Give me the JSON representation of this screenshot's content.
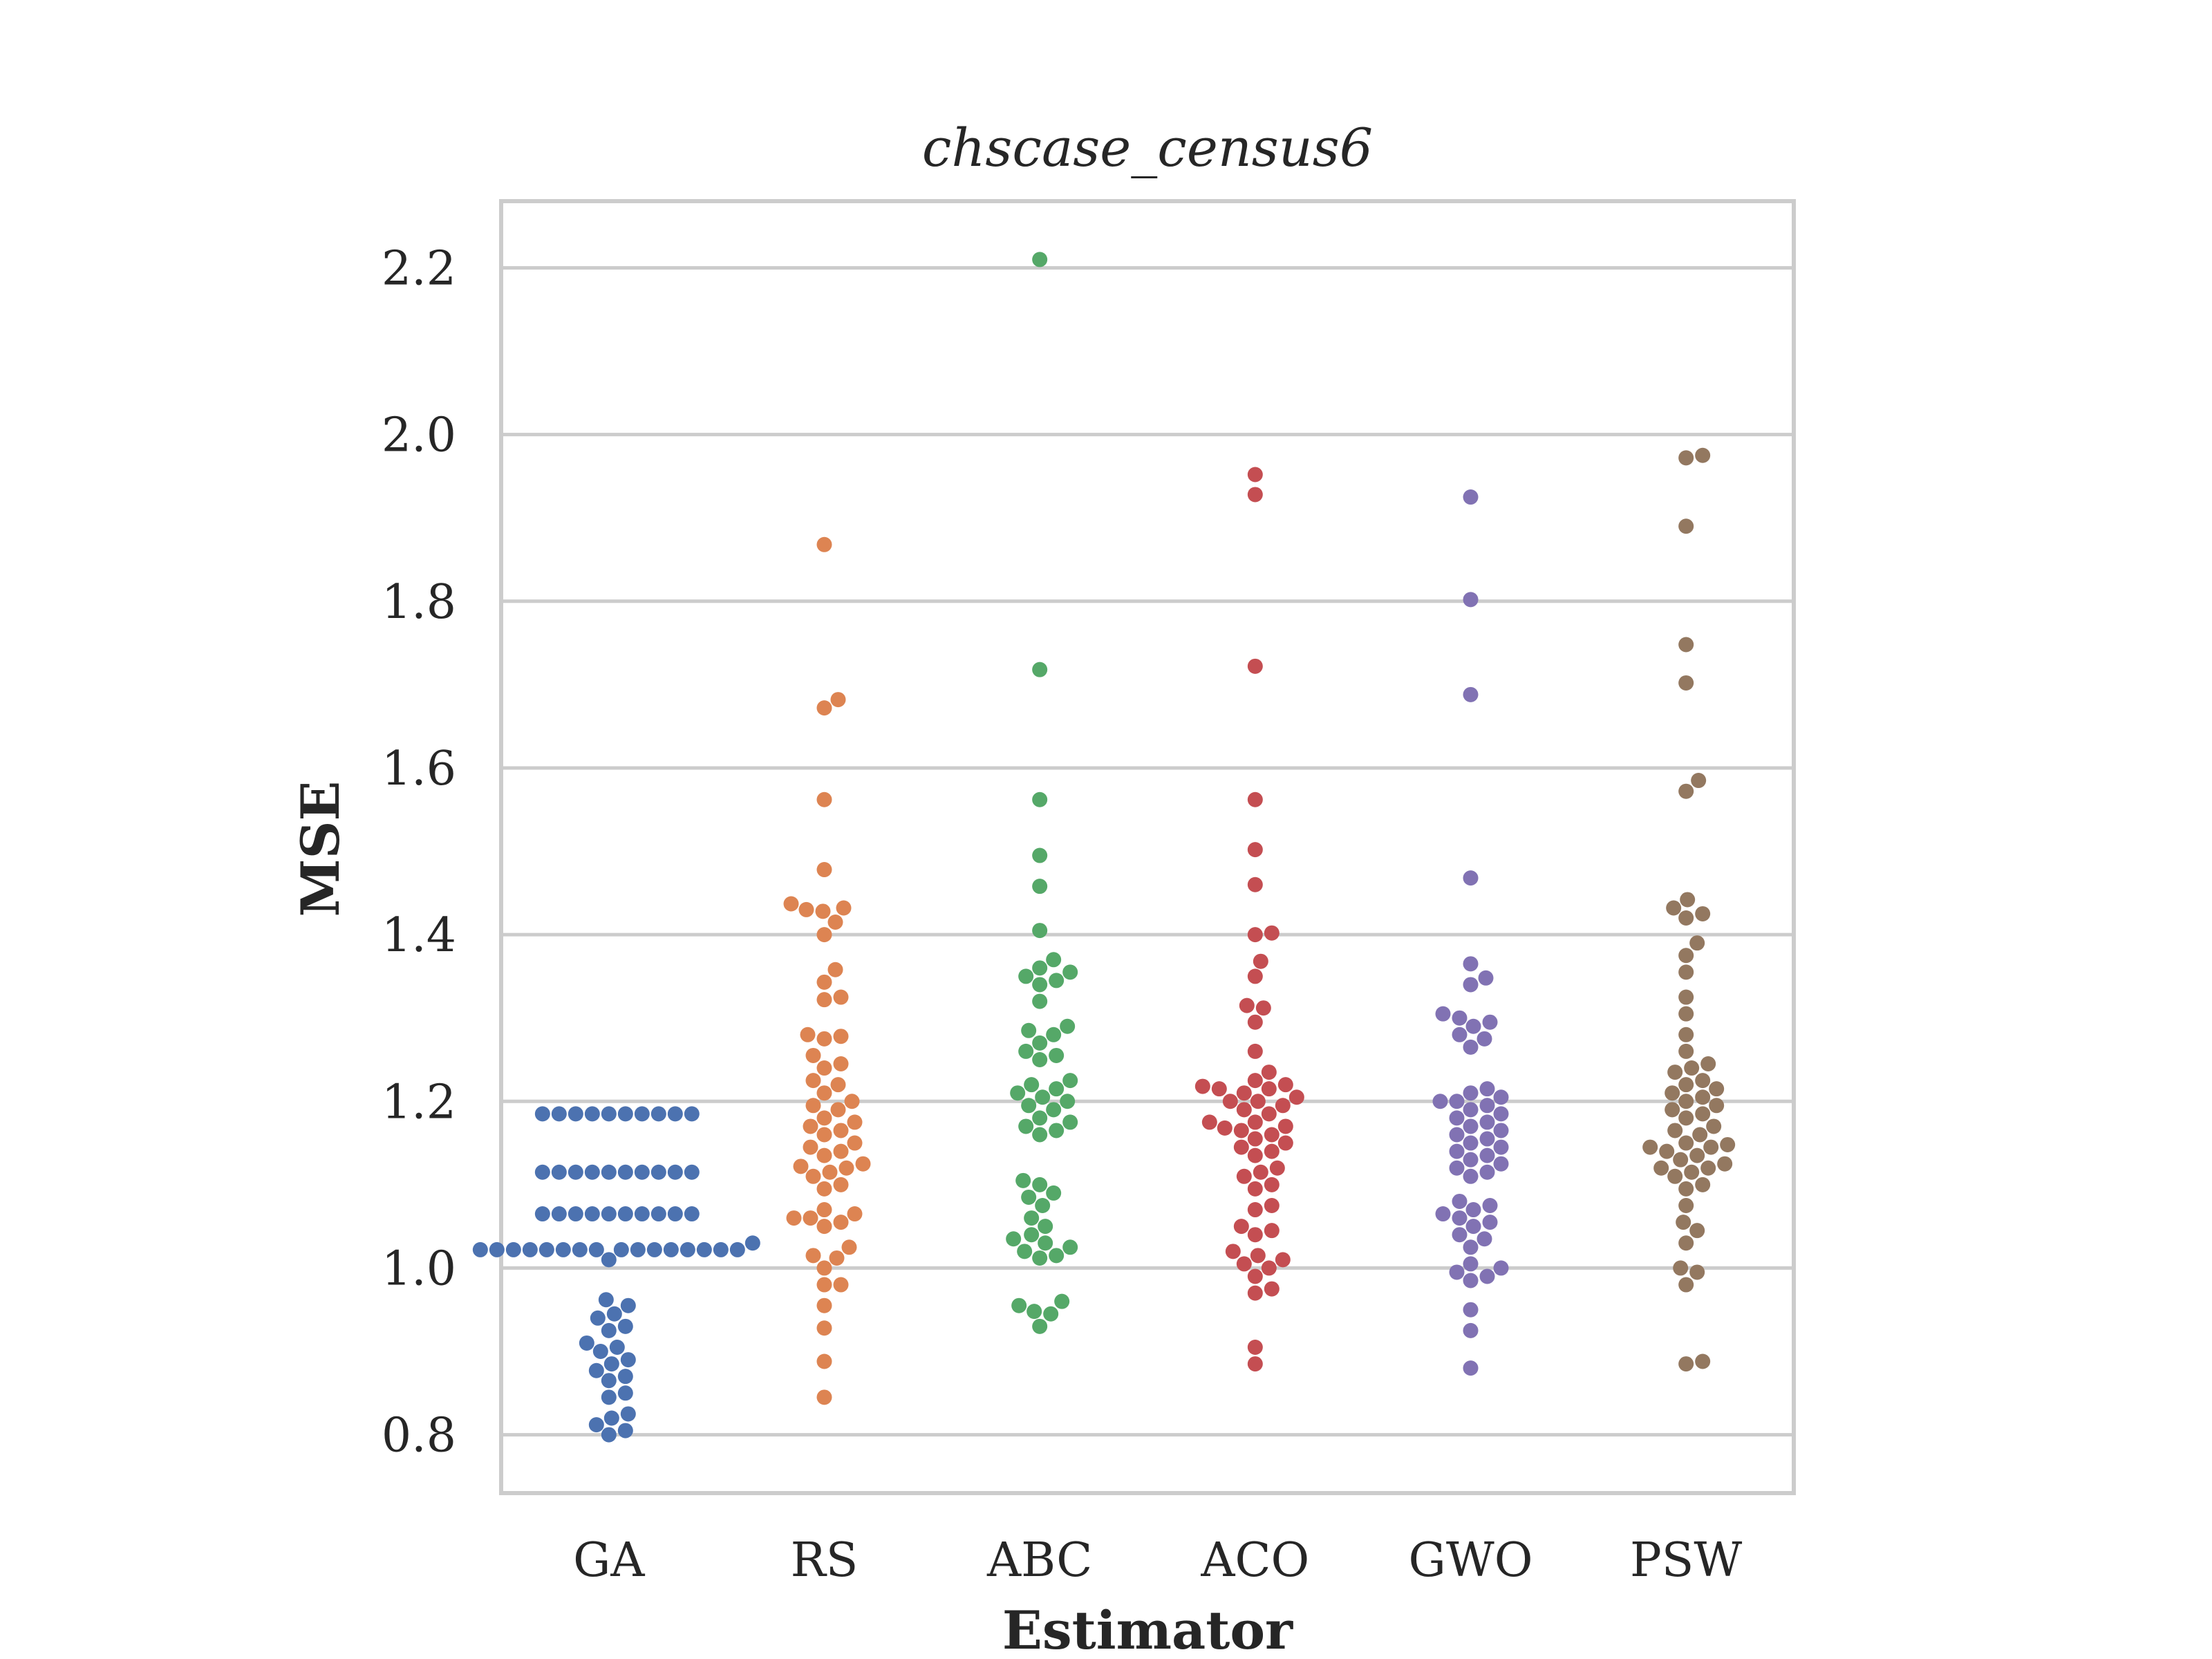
{
  "chart_data": {
    "type": "scatter",
    "subtype": "swarm",
    "title": "chscase_census6",
    "xlabel": "Estimator",
    "ylabel": "MSE",
    "ylim": [
      0.73,
      2.28
    ],
    "yticks": [
      "0.8",
      "1.0",
      "1.2",
      "1.4",
      "1.6",
      "1.8",
      "2.0",
      "2.2"
    ],
    "grid": "horizontal",
    "categories": [
      "GA",
      "RS",
      "ABC",
      "ACO",
      "GWO",
      "PSW"
    ],
    "series": [
      {
        "category": "GA",
        "color": "#4c72b0",
        "values": [
          1.185,
          1.185,
          1.185,
          1.185,
          1.185,
          1.185,
          1.185,
          1.185,
          1.185,
          1.185,
          1.115,
          1.115,
          1.115,
          1.115,
          1.115,
          1.115,
          1.115,
          1.115,
          1.115,
          1.115,
          1.065,
          1.065,
          1.065,
          1.065,
          1.065,
          1.065,
          1.065,
          1.065,
          1.065,
          1.065,
          1.022,
          1.022,
          1.022,
          1.022,
          1.022,
          1.022,
          1.022,
          1.022,
          1.022,
          1.022,
          1.022,
          1.022,
          1.022,
          1.022,
          1.022,
          1.022,
          1.03,
          1.01,
          0.962,
          0.955,
          0.945,
          0.94,
          0.93,
          0.925,
          0.91,
          0.905,
          0.9,
          0.89,
          0.885,
          0.877,
          0.87,
          0.865,
          0.85,
          0.845,
          0.825,
          0.82,
          0.812,
          0.805,
          0.8
        ]
      },
      {
        "category": "RS",
        "color": "#dd8452",
        "values": [
          1.868,
          1.682,
          1.672,
          1.562,
          1.478,
          1.437,
          1.432,
          1.43,
          1.428,
          1.415,
          1.4,
          1.358,
          1.343,
          1.325,
          1.322,
          1.28,
          1.278,
          1.275,
          1.255,
          1.245,
          1.24,
          1.225,
          1.22,
          1.21,
          1.2,
          1.195,
          1.19,
          1.18,
          1.175,
          1.17,
          1.165,
          1.16,
          1.15,
          1.145,
          1.14,
          1.135,
          1.125,
          1.122,
          1.12,
          1.115,
          1.11,
          1.1,
          1.095,
          1.07,
          1.065,
          1.06,
          1.06,
          1.055,
          1.05,
          1.025,
          1.015,
          1.012,
          1.0,
          0.98,
          0.98,
          0.955,
          0.928,
          0.888,
          0.845
        ]
      },
      {
        "category": "ABC",
        "color": "#55a868",
        "values": [
          2.21,
          1.718,
          1.562,
          1.495,
          1.458,
          1.405,
          1.37,
          1.36,
          1.355,
          1.35,
          1.345,
          1.34,
          1.32,
          1.29,
          1.285,
          1.28,
          1.27,
          1.26,
          1.255,
          1.25,
          1.225,
          1.22,
          1.215,
          1.21,
          1.205,
          1.2,
          1.195,
          1.19,
          1.18,
          1.175,
          1.17,
          1.165,
          1.16,
          1.105,
          1.1,
          1.09,
          1.085,
          1.075,
          1.06,
          1.05,
          1.04,
          1.035,
          1.03,
          1.025,
          1.02,
          1.015,
          1.012,
          0.96,
          0.955,
          0.948,
          0.945,
          0.93
        ]
      },
      {
        "category": "ACO",
        "color": "#c44e52",
        "values": [
          1.952,
          1.928,
          1.722,
          1.562,
          1.502,
          1.46,
          1.402,
          1.4,
          1.368,
          1.35,
          1.315,
          1.312,
          1.295,
          1.26,
          1.235,
          1.225,
          1.22,
          1.218,
          1.215,
          1.215,
          1.21,
          1.205,
          1.2,
          1.2,
          1.195,
          1.19,
          1.185,
          1.175,
          1.175,
          1.17,
          1.168,
          1.165,
          1.16,
          1.155,
          1.15,
          1.145,
          1.14,
          1.135,
          1.12,
          1.115,
          1.11,
          1.1,
          1.095,
          1.075,
          1.07,
          1.05,
          1.045,
          1.04,
          1.02,
          1.015,
          1.01,
          1.005,
          1.0,
          0.99,
          0.975,
          0.97,
          0.905,
          0.885
        ]
      },
      {
        "category": "GWO",
        "color": "#8172b3",
        "values": [
          1.925,
          1.802,
          1.688,
          1.468,
          1.365,
          1.348,
          1.34,
          1.305,
          1.3,
          1.295,
          1.29,
          1.28,
          1.275,
          1.265,
          1.215,
          1.21,
          1.205,
          1.2,
          1.2,
          1.195,
          1.19,
          1.185,
          1.18,
          1.175,
          1.17,
          1.165,
          1.16,
          1.155,
          1.15,
          1.145,
          1.14,
          1.135,
          1.13,
          1.125,
          1.12,
          1.115,
          1.11,
          1.08,
          1.075,
          1.07,
          1.065,
          1.06,
          1.055,
          1.05,
          1.04,
          1.035,
          1.025,
          1.005,
          1.0,
          0.995,
          0.99,
          0.985,
          0.95,
          0.925,
          0.88
        ]
      },
      {
        "category": "PSW",
        "color": "#937860",
        "values": [
          1.975,
          1.972,
          1.89,
          1.748,
          1.702,
          1.585,
          1.572,
          1.442,
          1.432,
          1.425,
          1.42,
          1.39,
          1.375,
          1.355,
          1.325,
          1.305,
          1.28,
          1.26,
          1.245,
          1.24,
          1.235,
          1.225,
          1.22,
          1.215,
          1.21,
          1.205,
          1.2,
          1.195,
          1.19,
          1.185,
          1.18,
          1.17,
          1.165,
          1.16,
          1.15,
          1.148,
          1.145,
          1.145,
          1.14,
          1.135,
          1.13,
          1.125,
          1.12,
          1.12,
          1.115,
          1.11,
          1.1,
          1.095,
          1.075,
          1.055,
          1.045,
          1.03,
          1.0,
          0.995,
          0.98,
          0.888,
          0.885
        ]
      }
    ]
  }
}
